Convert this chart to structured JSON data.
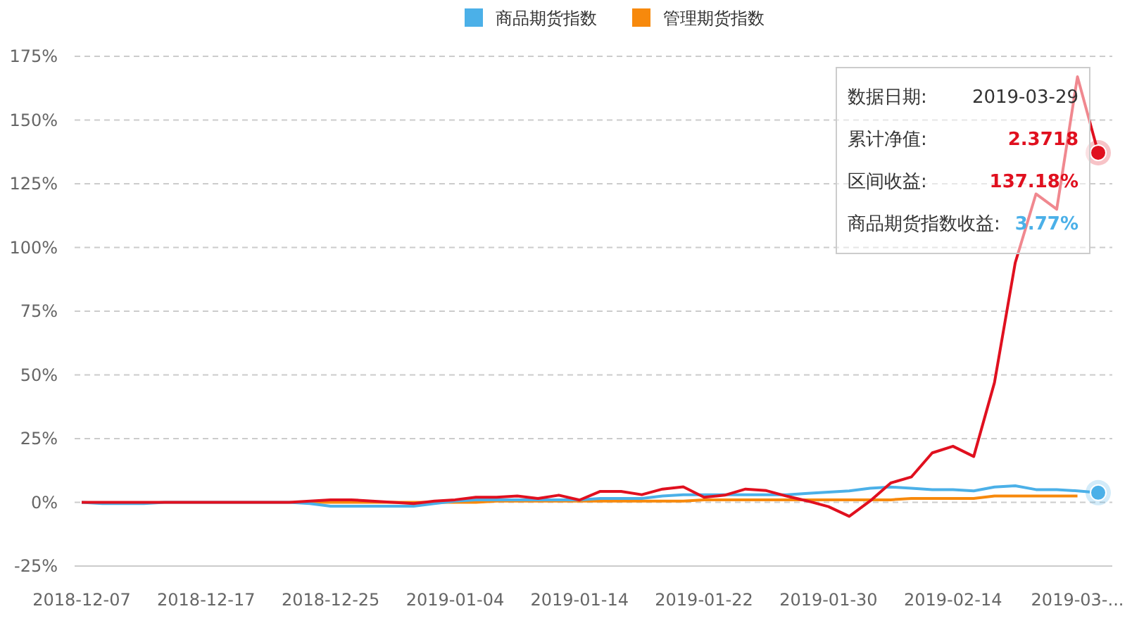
{
  "chart_data": {
    "type": "line",
    "categories": [
      "2018-12-07",
      null,
      null,
      null,
      null,
      null,
      "2018-12-17",
      null,
      null,
      null,
      null,
      null,
      "2018-12-25",
      null,
      null,
      null,
      null,
      null,
      "2019-01-04",
      null,
      null,
      null,
      null,
      null,
      "2019-01-14",
      null,
      null,
      null,
      null,
      null,
      "2019-01-22",
      null,
      null,
      null,
      null,
      null,
      "2019-01-30",
      null,
      null,
      null,
      null,
      null,
      "2019-02-14",
      null,
      null,
      null,
      null,
      null,
      "2019-03-...",
      null
    ],
    "series": [
      {
        "color": "#e0101f",
        "values": [
          0,
          0,
          0,
          0,
          0,
          0,
          0,
          0,
          0,
          0,
          0,
          0.5,
          1,
          1,
          0.5,
          0,
          -0.5,
          0.5,
          1,
          2,
          2,
          2.5,
          1.5,
          2.8,
          0.9,
          4.3,
          4.3,
          3,
          5.2,
          6.1,
          2,
          2.8,
          5.2,
          4.6,
          2.4,
          0.5,
          -1.7,
          -5.5,
          0.5,
          7.6,
          10,
          19.4,
          22,
          18,
          47,
          94,
          121,
          115,
          167,
          137.18
        ]
      },
      {
        "name": "商品期货指数",
        "color": "#4bb0e8",
        "values": [
          0,
          -0.5,
          -0.5,
          -0.5,
          0,
          0,
          0,
          0,
          0,
          0,
          0,
          -0.5,
          -1.5,
          -1.5,
          -1.5,
          -1.5,
          -1.5,
          -0.5,
          0.5,
          1,
          1,
          1,
          1,
          1,
          1,
          1.5,
          1.5,
          1.5,
          2.5,
          3,
          3,
          3,
          3,
          3,
          3,
          3.5,
          4,
          4.5,
          5.5,
          6,
          5.5,
          5,
          5,
          4.5,
          6,
          6.5,
          5,
          5,
          4.5,
          3.77
        ]
      },
      {
        "name": "管理期货指数",
        "color": "#f7890c",
        "values": [
          null,
          null,
          null,
          null,
          null,
          null,
          null,
          null,
          null,
          null,
          null,
          0,
          0,
          0,
          0,
          0,
          0,
          0,
          0,
          0,
          0.5,
          0.5,
          0.5,
          0.5,
          0.5,
          0.5,
          0.5,
          0.5,
          0.5,
          0.5,
          1,
          1,
          1,
          1,
          1,
          1,
          1,
          1,
          1,
          1,
          1.5,
          1.5,
          1.5,
          1.5,
          2.5,
          2.5,
          2.5,
          2.5,
          2.5,
          null
        ]
      }
    ],
    "ylim": [
      -25,
      175
    ],
    "yticks": [
      {
        "value": -25,
        "label": "-25%"
      },
      {
        "value": 0,
        "label": "0%"
      },
      {
        "value": 25,
        "label": "25%"
      },
      {
        "value": 50,
        "label": "50%"
      },
      {
        "value": 75,
        "label": "75%"
      },
      {
        "value": 100,
        "label": "100%"
      },
      {
        "value": 125,
        "label": "125%"
      },
      {
        "value": 150,
        "label": "150%"
      },
      {
        "value": 175,
        "label": "175%"
      }
    ],
    "grid": "y",
    "legend": "top",
    "annotations": [
      "数据日期:",
      "2019-03-29",
      "累计净值:",
      "2.3718",
      "区间收益:",
      "137.18%",
      "商品期货指数收益:",
      "3.77%"
    ]
  }
}
